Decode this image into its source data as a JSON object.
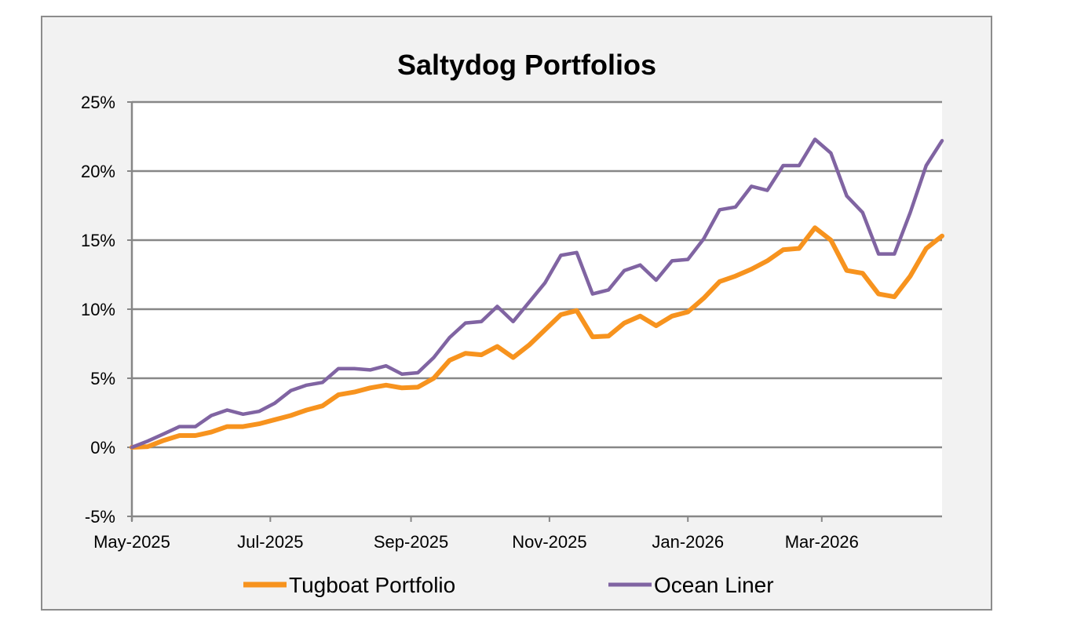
{
  "chart_data": {
    "type": "line",
    "title": "Saltydog Portfolios",
    "xlabel": "",
    "ylabel": "",
    "ylim": [
      -5,
      25
    ],
    "y_ticks": [
      -5,
      0,
      5,
      10,
      15,
      20,
      25
    ],
    "y_tick_labels": [
      "-5%",
      "0%",
      "5%",
      "10%",
      "15%",
      "20%",
      "25%"
    ],
    "x_tick_dates": [
      "2025-05-01",
      "2025-07-01",
      "2025-09-01",
      "2025-11-01",
      "2026-01-01",
      "2026-03-01"
    ],
    "x_tick_labels": [
      "May-2025",
      "Jul-2025",
      "Sep-2025",
      "Nov-2025",
      "Jan-2026",
      "Mar-2026"
    ],
    "xlim": [
      "2025-05-01",
      "2026-04-23"
    ],
    "grid": "horizontal",
    "legend_position": "bottom",
    "x": [
      "2025-05-01",
      "2025-05-08",
      "2025-05-15",
      "2025-05-22",
      "2025-05-29",
      "2025-06-05",
      "2025-06-12",
      "2025-06-19",
      "2025-06-26",
      "2025-07-03",
      "2025-07-10",
      "2025-07-17",
      "2025-07-24",
      "2025-07-31",
      "2025-08-07",
      "2025-08-14",
      "2025-08-21",
      "2025-08-28",
      "2025-09-04",
      "2025-09-11",
      "2025-09-18",
      "2025-09-25",
      "2025-10-02",
      "2025-10-09",
      "2025-10-16",
      "2025-10-23",
      "2025-10-30",
      "2025-11-06",
      "2025-11-13",
      "2025-11-20",
      "2025-11-27",
      "2025-12-04",
      "2025-12-11",
      "2025-12-18",
      "2025-12-25",
      "2026-01-01",
      "2026-01-08",
      "2026-01-15",
      "2026-01-22",
      "2026-01-29",
      "2026-02-05",
      "2026-02-12",
      "2026-02-19",
      "2026-02-26",
      "2026-03-05",
      "2026-03-12",
      "2026-03-19",
      "2026-03-26",
      "2026-04-02",
      "2026-04-09",
      "2026-04-16",
      "2026-04-23"
    ],
    "series": [
      {
        "name": "Tugboat Portfolio",
        "color": "#f7931e",
        "values": [
          0,
          0.05,
          0.5,
          0.85,
          0.85,
          1.1,
          1.5,
          1.5,
          1.7,
          2.0,
          2.3,
          2.7,
          3.0,
          3.8,
          4.0,
          4.3,
          4.5,
          4.3,
          4.35,
          5.0,
          6.3,
          6.8,
          6.7,
          7.3,
          6.5,
          7.4,
          8.5,
          9.6,
          9.9,
          8.0,
          8.05,
          9.0,
          9.5,
          8.8,
          9.5,
          9.8,
          10.8,
          12.0,
          12.4,
          12.9,
          13.5,
          14.3,
          14.4,
          15.9,
          15.0,
          12.8,
          12.6,
          11.1,
          10.9,
          12.4,
          14.4,
          15.3
        ]
      },
      {
        "name": "Ocean Liner",
        "color": "#8064a2",
        "values": [
          0,
          0.45,
          0.97,
          1.5,
          1.5,
          2.3,
          2.7,
          2.4,
          2.6,
          3.2,
          4.1,
          4.5,
          4.7,
          5.7,
          5.7,
          5.6,
          5.9,
          5.3,
          5.4,
          6.5,
          7.95,
          9.0,
          9.1,
          10.2,
          9.1,
          10.5,
          11.9,
          13.9,
          14.1,
          11.1,
          11.4,
          12.8,
          13.2,
          12.1,
          13.5,
          13.6,
          15.1,
          17.2,
          17.4,
          18.9,
          18.6,
          20.4,
          20.4,
          22.3,
          21.3,
          18.2,
          17.0,
          14.0,
          14.0,
          17.0,
          20.4,
          22.2
        ]
      }
    ]
  }
}
